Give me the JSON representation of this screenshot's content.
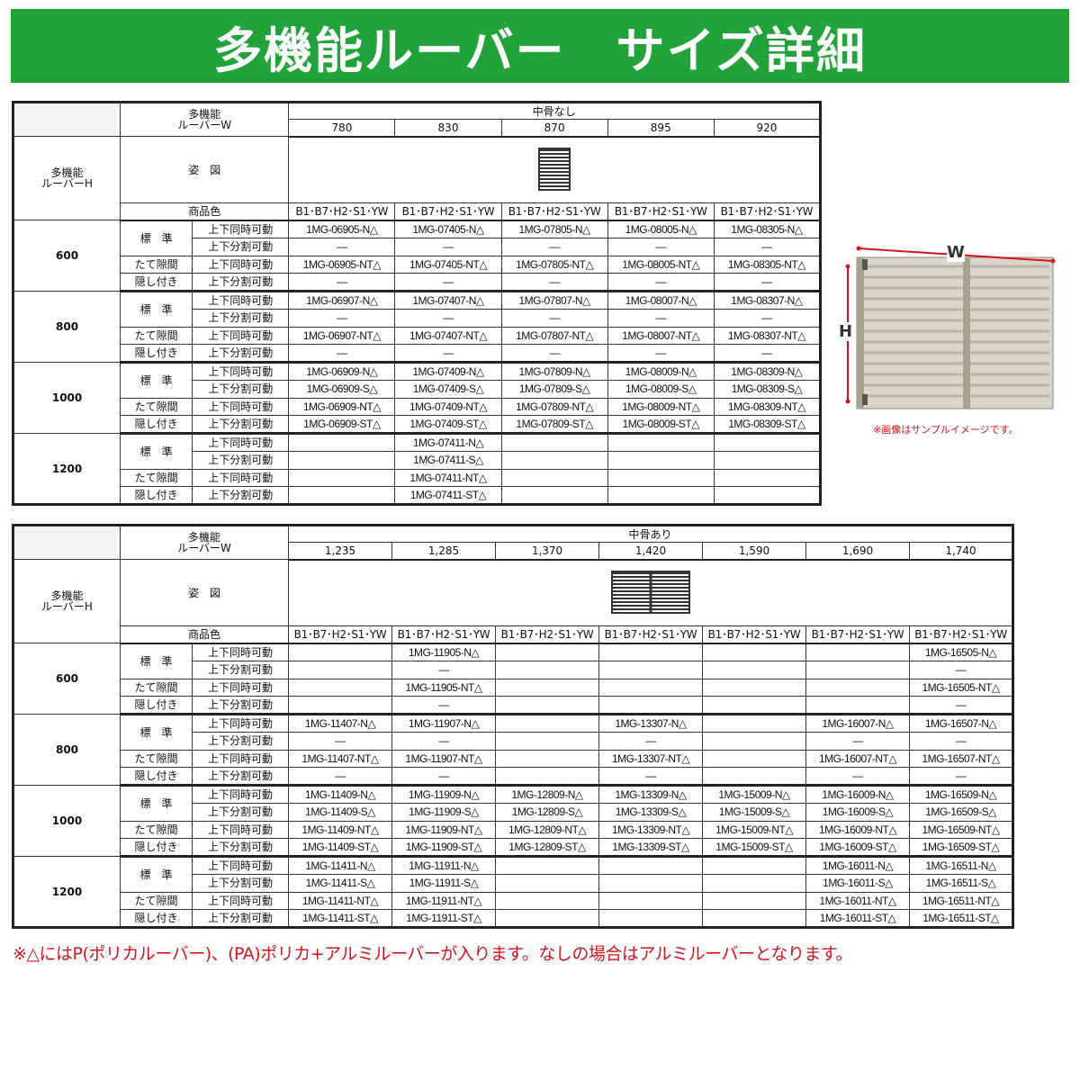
{
  "title": "多機能ルーバー　サイズ詳細",
  "labels": {
    "w_header": [
      "多機能",
      "ルーバーW"
    ],
    "h_header": [
      "多機能",
      "ルーバーH"
    ],
    "figure": "姿　図",
    "color": "商品色",
    "standard": "標　準",
    "gap1": "たて隙間",
    "gap2": "隠し付き",
    "sync": "上下同時可動",
    "split": "上下分割可動"
  },
  "tables": [
    {
      "group": "中骨なし",
      "widths": [
        "780",
        "830",
        "870",
        "895",
        "920"
      ],
      "colors": [
        "B1･B7･H2･S1･YW",
        "B1･B7･H2･S1･YW",
        "B1･B7･H2･S1･YW",
        "B1･B7･H2･S1･YW",
        "B1･B7･H2･S1･YW"
      ],
      "blocks": [
        {
          "h": "600",
          "rows": [
            [
              "1MG-06905-N△",
              "1MG-07405-N△",
              "1MG-07805-N△",
              "1MG-08005-N△",
              "1MG-08305-N△"
            ],
            [
              "—",
              "—",
              "—",
              "—",
              "—"
            ],
            [
              "1MG-06905-NT△",
              "1MG-07405-NT△",
              "1MG-07805-NT△",
              "1MG-08005-NT△",
              "1MG-08305-NT△"
            ],
            [
              "—",
              "—",
              "—",
              "—",
              "—"
            ]
          ]
        },
        {
          "h": "800",
          "rows": [
            [
              "1MG-06907-N△",
              "1MG-07407-N△",
              "1MG-07807-N△",
              "1MG-08007-N△",
              "1MG-08307-N△"
            ],
            [
              "—",
              "—",
              "—",
              "—",
              "—"
            ],
            [
              "1MG-06907-NT△",
              "1MG-07407-NT△",
              "1MG-07807-NT△",
              "1MG-08007-NT△",
              "1MG-08307-NT△"
            ],
            [
              "—",
              "—",
              "—",
              "—",
              "—"
            ]
          ]
        },
        {
          "h": "1000",
          "rows": [
            [
              "1MG-06909-N△",
              "1MG-07409-N△",
              "1MG-07809-N△",
              "1MG-08009-N△",
              "1MG-08309-N△"
            ],
            [
              "1MG-06909-S△",
              "1MG-07409-S△",
              "1MG-07809-S△",
              "1MG-08009-S△",
              "1MG-08309-S△"
            ],
            [
              "1MG-06909-NT△",
              "1MG-07409-NT△",
              "1MG-07809-NT△",
              "1MG-08009-NT△",
              "1MG-08309-NT△"
            ],
            [
              "1MG-06909-ST△",
              "1MG-07409-ST△",
              "1MG-07809-ST△",
              "1MG-08009-ST△",
              "1MG-08309-ST△"
            ]
          ]
        },
        {
          "h": "1200",
          "rows": [
            [
              "",
              "1MG-07411-N△",
              "",
              "",
              ""
            ],
            [
              "",
              "1MG-07411-S△",
              "",
              "",
              ""
            ],
            [
              "",
              "1MG-07411-NT△",
              "",
              "",
              ""
            ],
            [
              "",
              "1MG-07411-ST△",
              "",
              "",
              ""
            ]
          ]
        }
      ]
    },
    {
      "group": "中骨あり",
      "widths": [
        "1,235",
        "1,285",
        "1,370",
        "1,420",
        "1,590",
        "1,690",
        "1,740"
      ],
      "colors": [
        "B1･B7･H2･S1･YW",
        "B1･B7･H2･S1･YW",
        "B1･B7･H2･S1･YW",
        "B1･B7･H2･S1･YW",
        "B1･B7･H2･S1･YW",
        "B1･B7･H2･S1･YW",
        "B1･B7･H2･S1･YW"
      ],
      "blocks": [
        {
          "h": "600",
          "rows": [
            [
              "",
              "1MG-11905-N△",
              "",
              "",
              "",
              "",
              "1MG-16505-N△"
            ],
            [
              "",
              "—",
              "",
              "",
              "",
              "",
              "—"
            ],
            [
              "",
              "1MG-11905-NT△",
              "",
              "",
              "",
              "",
              "1MG-16505-NT△"
            ],
            [
              "",
              "—",
              "",
              "",
              "",
              "",
              "—"
            ]
          ]
        },
        {
          "h": "800",
          "rows": [
            [
              "1MG-11407-N△",
              "1MG-11907-N△",
              "",
              "1MG-13307-N△",
              "",
              "1MG-16007-N△",
              "1MG-16507-N△"
            ],
            [
              "—",
              "—",
              "",
              "—",
              "",
              "—",
              "—"
            ],
            [
              "1MG-11407-NT△",
              "1MG-11907-NT△",
              "",
              "1MG-13307-NT△",
              "",
              "1MG-16007-NT△",
              "1MG-16507-NT△"
            ],
            [
              "—",
              "—",
              "",
              "—",
              "",
              "—",
              "—"
            ]
          ]
        },
        {
          "h": "1000",
          "rows": [
            [
              "1MG-11409-N△",
              "1MG-11909-N△",
              "1MG-12809-N△",
              "1MG-13309-N△",
              "1MG-15009-N△",
              "1MG-16009-N△",
              "1MG-16509-N△"
            ],
            [
              "1MG-11409-S△",
              "1MG-11909-S△",
              "1MG-12809-S△",
              "1MG-13309-S△",
              "1MG-15009-S△",
              "1MG-16009-S△",
              "1MG-16509-S△"
            ],
            [
              "1MG-11409-NT△",
              "1MG-11909-NT△",
              "1MG-12809-NT△",
              "1MG-13309-NT△",
              "1MG-15009-NT△",
              "1MG-16009-NT△",
              "1MG-16509-NT△"
            ],
            [
              "1MG-11409-ST△",
              "1MG-11909-ST△",
              "1MG-12809-ST△",
              "1MG-13309-ST△",
              "1MG-15009-ST△",
              "1MG-16009-ST△",
              "1MG-16509-ST△"
            ]
          ]
        },
        {
          "h": "1200",
          "rows": [
            [
              "1MG-11411-N△",
              "1MG-11911-N△",
              "",
              "",
              "",
              "1MG-16011-N△",
              "1MG-16511-N△"
            ],
            [
              "1MG-11411-S△",
              "1MG-11911-S△",
              "",
              "",
              "",
              "1MG-16011-S△",
              "1MG-16511-S△"
            ],
            [
              "1MG-11411-NT△",
              "1MG-11911-NT△",
              "",
              "",
              "",
              "1MG-16011-NT△",
              "1MG-16511-NT△"
            ],
            [
              "1MG-11411-ST△",
              "1MG-11911-ST△",
              "",
              "",
              "",
              "1MG-16011-ST△",
              "1MG-16511-ST△"
            ]
          ]
        }
      ]
    }
  ],
  "sample_image": {
    "w_label": "W",
    "h_label": "H",
    "caption": "※画像はサンプルイメージです。",
    "accent": "#d8131b"
  },
  "footer": "※△にはP(ポリカルーバー)、(PA)ポリカ+アルミルーバーが入ります。なしの場合はアルミルーバーとなります。",
  "colors": {
    "title_bg": "#22a33a",
    "note_red": "#d8131b"
  }
}
